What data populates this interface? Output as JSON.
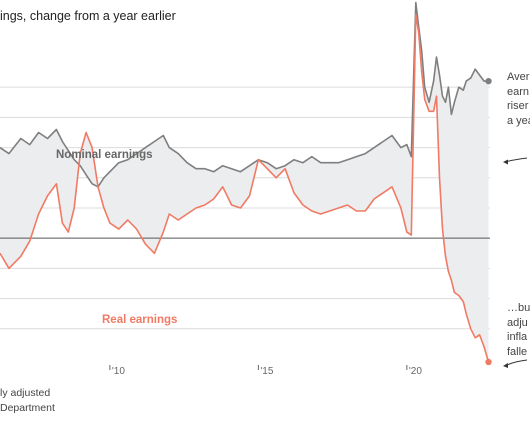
{
  "subtitle": "ings, change from a year earlier",
  "footnotes": [
    "ly adjusted",
    "Department"
  ],
  "annotations": {
    "top": [
      "Aver",
      "earn",
      "riser",
      "a yea"
    ],
    "bottom": [
      "…but",
      "adju",
      "infla",
      "falle"
    ]
  },
  "colors": {
    "nominal": "#7f7f7f",
    "real": "#f07a64",
    "band": "#ebedef",
    "zero": "#555555",
    "grid": "#dcdcdc"
  },
  "chart_data": {
    "type": "line",
    "x_unit": "year",
    "xlim": [
      2006.3,
      2022.8
    ],
    "ylim": [
      -4.2,
      5.9
    ],
    "x_tick_labels": [
      {
        "x": 2010,
        "label": "'10"
      },
      {
        "x": 2015,
        "label": "'15"
      },
      {
        "x": 2020,
        "label": "'20"
      }
    ],
    "y_gridlines": [
      -3,
      -2,
      -1,
      0,
      1,
      2,
      3,
      4,
      5
    ],
    "zero_line": 0,
    "series": [
      {
        "name": "Nominal earnings",
        "x": [
          2006.3,
          2006.6,
          2007.0,
          2007.3,
          2007.6,
          2007.9,
          2008.2,
          2008.4,
          2008.6,
          2008.8,
          2009.0,
          2009.2,
          2009.4,
          2009.6,
          2009.8,
          2010.0,
          2010.3,
          2010.6,
          2010.9,
          2011.2,
          2011.5,
          2011.8,
          2012.0,
          2012.3,
          2012.6,
          2012.9,
          2013.2,
          2013.5,
          2013.8,
          2014.1,
          2014.4,
          2014.7,
          2015.0,
          2015.3,
          2015.6,
          2015.9,
          2016.2,
          2016.5,
          2016.8,
          2017.1,
          2017.4,
          2017.7,
          2018.0,
          2018.3,
          2018.6,
          2018.9,
          2019.2,
          2019.5,
          2019.8,
          2020.0,
          2020.15,
          2020.3,
          2020.4,
          2020.5,
          2020.6,
          2020.75,
          2020.9,
          2021.0,
          2021.1,
          2021.2,
          2021.3,
          2021.4,
          2021.5,
          2021.6,
          2021.75,
          2021.9,
          2022.0,
          2022.15,
          2022.3,
          2022.45,
          2022.6,
          2022.75
        ],
        "values": [
          3.0,
          2.8,
          3.3,
          3.1,
          3.5,
          3.3,
          3.6,
          3.2,
          2.9,
          2.6,
          2.4,
          2.1,
          1.8,
          1.7,
          2.0,
          2.2,
          2.5,
          2.6,
          2.8,
          3.0,
          3.2,
          3.4,
          3.0,
          2.8,
          2.5,
          2.3,
          2.3,
          2.2,
          2.4,
          2.3,
          2.2,
          2.4,
          2.6,
          2.5,
          2.3,
          2.4,
          2.6,
          2.5,
          2.7,
          2.5,
          2.5,
          2.5,
          2.6,
          2.7,
          2.8,
          3.0,
          3.2,
          3.4,
          3.0,
          3.1,
          2.7,
          7.8,
          7.0,
          6.2,
          5.0,
          4.5,
          5.2,
          6.0,
          5.4,
          4.7,
          4.5,
          5.0,
          4.1,
          4.5,
          5.0,
          4.9,
          5.2,
          5.3,
          5.6,
          5.4,
          5.2,
          5.2
        ]
      },
      {
        "name": "Real earnings",
        "x": [
          2006.3,
          2006.6,
          2007.0,
          2007.3,
          2007.6,
          2007.9,
          2008.2,
          2008.4,
          2008.6,
          2008.8,
          2009.0,
          2009.2,
          2009.4,
          2009.6,
          2009.8,
          2010.0,
          2010.3,
          2010.6,
          2010.9,
          2011.2,
          2011.5,
          2011.8,
          2012.0,
          2012.3,
          2012.6,
          2012.9,
          2013.2,
          2013.5,
          2013.8,
          2014.1,
          2014.4,
          2014.7,
          2015.0,
          2015.3,
          2015.6,
          2015.9,
          2016.2,
          2016.5,
          2016.8,
          2017.1,
          2017.4,
          2017.7,
          2018.0,
          2018.3,
          2018.6,
          2018.9,
          2019.2,
          2019.5,
          2019.8,
          2020.0,
          2020.15,
          2020.3,
          2020.4,
          2020.5,
          2020.6,
          2020.75,
          2020.9,
          2021.0,
          2021.1,
          2021.2,
          2021.3,
          2021.4,
          2021.5,
          2021.6,
          2021.75,
          2021.9,
          2022.0,
          2022.15,
          2022.3,
          2022.45,
          2022.6,
          2022.75
        ],
        "values": [
          -0.5,
          -1.0,
          -0.6,
          -0.1,
          0.8,
          1.4,
          1.8,
          0.5,
          0.2,
          1.0,
          2.8,
          3.5,
          3.0,
          1.7,
          1.0,
          0.5,
          0.3,
          0.6,
          0.3,
          -0.2,
          -0.5,
          0.2,
          0.8,
          0.6,
          0.8,
          1.0,
          1.1,
          1.3,
          1.7,
          1.1,
          1.0,
          1.4,
          2.6,
          2.3,
          2.0,
          2.3,
          1.5,
          1.1,
          0.9,
          0.8,
          0.9,
          1.0,
          1.1,
          0.9,
          0.9,
          1.3,
          1.5,
          1.7,
          1.0,
          0.2,
          0.1,
          7.4,
          6.8,
          5.5,
          4.6,
          4.2,
          4.2,
          4.7,
          2.0,
          0.3,
          -0.6,
          -1.1,
          -1.4,
          -1.8,
          -1.9,
          -2.1,
          -2.5,
          -3.0,
          -3.3,
          -3.2,
          -3.6,
          -4.1
        ]
      }
    ]
  }
}
